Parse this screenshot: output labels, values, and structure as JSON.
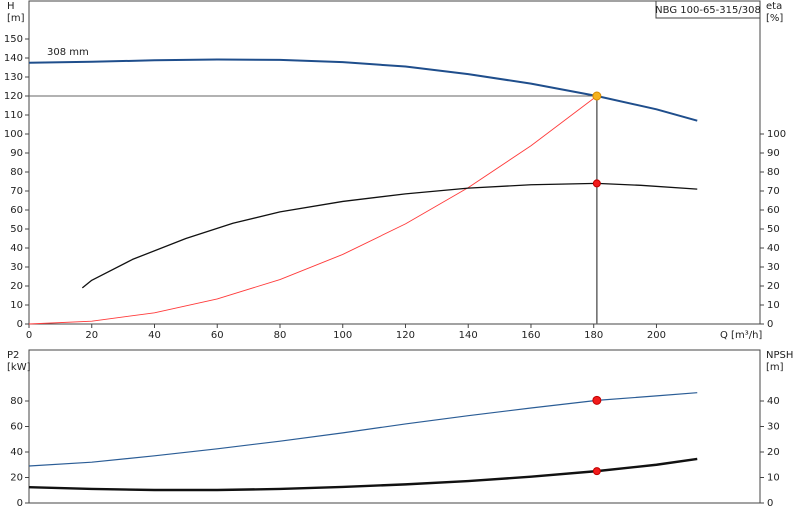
{
  "chart_data": [
    {
      "type": "line",
      "model_label": "NBG 100-65-315/308",
      "annotation": "308 mm",
      "ylabel": [
        "H",
        "[m]"
      ],
      "y2label": [
        "eta",
        "[%]"
      ],
      "xlabel": "Q [m³/h]",
      "xlim": [
        0,
        233
      ],
      "xticks": [
        0,
        20,
        40,
        60,
        80,
        100,
        120,
        140,
        160,
        180,
        200
      ],
      "ylim": [
        0,
        170
      ],
      "yticks": [
        0,
        10,
        20,
        30,
        40,
        50,
        60,
        70,
        80,
        90,
        100,
        110,
        120,
        130,
        140,
        150
      ],
      "y2lim": [
        0,
        170
      ],
      "y2ticks": [
        0,
        10,
        20,
        30,
        40,
        50,
        60,
        70,
        80,
        90,
        100
      ],
      "series": [
        {
          "color": "#1f4e8c",
          "width": 2,
          "axis": "y",
          "x": [
            0,
            20,
            40,
            60,
            80,
            100,
            120,
            140,
            160,
            181,
            200,
            213
          ],
          "values": [
            137.5,
            138,
            138.8,
            139.2,
            139,
            137.8,
            135.5,
            131.5,
            126.5,
            120,
            113,
            107
          ]
        },
        {
          "color": "#ff3b3b",
          "width": 0.9,
          "axis": "y",
          "x": [
            0,
            20,
            40,
            60,
            80,
            100,
            120,
            140,
            160,
            181
          ],
          "values": [
            0,
            1.5,
            5.9,
            13.2,
            23.4,
            36.6,
            52.7,
            71.8,
            93.8,
            120
          ]
        },
        {
          "color": "#111111",
          "width": 1.3,
          "axis": "y2",
          "x": [
            17,
            20,
            33,
            50,
            65,
            80,
            100,
            120,
            140,
            160,
            181,
            195,
            213
          ],
          "values": [
            19,
            23,
            34,
            45,
            53,
            59,
            64.5,
            68.5,
            71.5,
            73.3,
            74,
            73,
            71
          ]
        }
      ],
      "operating_point": {
        "x": 181,
        "y": 120,
        "y2": 74
      }
    },
    {
      "type": "line",
      "ylabel": [
        "P2",
        "[kW]"
      ],
      "y2label": [
        "NPSH",
        "[m]"
      ],
      "xlim": [
        0,
        233
      ],
      "ylim": [
        0,
        120
      ],
      "yticks": [
        0,
        20,
        40,
        60,
        80
      ],
      "y2lim": [
        0,
        60
      ],
      "y2ticks": [
        0,
        10,
        20,
        30,
        40
      ],
      "series": [
        {
          "color": "#2b5d96",
          "width": 1.2,
          "axis": "y",
          "x": [
            0,
            20,
            40,
            60,
            80,
            100,
            120,
            140,
            160,
            181,
            200,
            213
          ],
          "values": [
            29,
            32,
            37,
            42.5,
            48.5,
            55,
            62,
            68.5,
            74.5,
            80.5,
            84,
            86.5
          ]
        },
        {
          "color": "#111111",
          "width": 2.4,
          "axis": "y2",
          "x": [
            0,
            20,
            40,
            60,
            80,
            100,
            120,
            140,
            160,
            181,
            200,
            213
          ],
          "values": [
            6.2,
            5.5,
            5.1,
            5.1,
            5.5,
            6.3,
            7.3,
            8.6,
            10.3,
            12.5,
            15,
            17.3
          ]
        }
      ],
      "operating_point": {
        "x": 181,
        "y": 80.5,
        "y2": 12.5
      }
    }
  ]
}
